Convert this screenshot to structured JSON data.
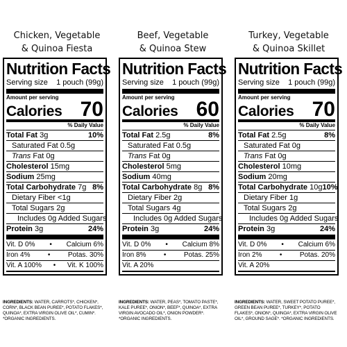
{
  "products": [
    {
      "title_line1": "Chicken, Vegetable",
      "title_line2": "& Quinoa Fiesta",
      "nf_title": "Nutrition Facts",
      "serving_label": "Serving size",
      "serving_value": "1 pouch (99g)",
      "amount_per_serving": "Amount per serving",
      "calories_label": "Calories",
      "calories": "70",
      "dv_header": "% Daily Value",
      "total_fat_label": "Total Fat",
      "total_fat": "3g",
      "total_fat_dv": "10%",
      "sat_fat": "Saturated Fat 0.5g",
      "trans_fat_italic": "Trans",
      "trans_fat": "Fat 0g",
      "chol_label": "Cholesterol",
      "chol": "15mg",
      "sodium_label": "Sodium",
      "sodium": "25mg",
      "carb_label": "Total Carbohydrate",
      "carb": "7g",
      "carb_dv": "8%",
      "fiber": "Dietary Fiber <1g",
      "sugars": "Total Sugars 2g",
      "added_sugars": "Includes 0g Added Sugars",
      "protein_label": "Protein",
      "protein": "3g",
      "protein_dv": "24%",
      "vit1_left": "Vit. D 0%",
      "vit1_right": "Calcium 6%",
      "vit2_left": "Iron 4%",
      "vit2_right": "Potas. 30%",
      "vit3_left": "Vit. A 100%",
      "vit3_right": "Vit. K 100%",
      "ingredients_label": "Ingredients:",
      "ingredients": "Water, Carrots*, Chicken*, Corn*, Black Bean Puree*, Potato Flakes*, Quinoa*, Extra Virgin Olive Oil*, Cumin*.",
      "organic_note": "*Organic Ingredients."
    },
    {
      "title_line1": "Beef, Vegetable",
      "title_line2": "& Quinoa Stew",
      "nf_title": "Nutrition Facts",
      "serving_label": "Serving size",
      "serving_value": "1 pouch (99g)",
      "amount_per_serving": "Amount per serving",
      "calories_label": "Calories",
      "calories": "60",
      "dv_header": "% Daily Value",
      "total_fat_label": "Total Fat",
      "total_fat": "2.5g",
      "total_fat_dv": "8%",
      "sat_fat": "Saturated Fat 0.5g",
      "trans_fat_italic": "Trans",
      "trans_fat": "Fat 0g",
      "chol_label": "Cholesterol",
      "chol": "5mg",
      "sodium_label": "Sodium",
      "sodium": "40mg",
      "carb_label": "Total Carbohydrate",
      "carb": "8g",
      "carb_dv": "8%",
      "fiber": "Dietary Fiber 2g",
      "sugars": "Total Sugars 4g",
      "added_sugars": "Includes 0g Added Sugars",
      "protein_label": "Protein",
      "protein": "3g",
      "protein_dv": "24%",
      "vit1_left": "Vit. D 0%",
      "vit1_right": "Calcium 8%",
      "vit2_left": "Iron 8%",
      "vit2_right": "Potas. 25%",
      "vit3_left": "Vit. A 20%",
      "vit3_right": "",
      "ingredients_label": "Ingredients:",
      "ingredients": "Water, Peas*, Tomato Paste*, Kale Puree*, Onion*, Beef*, Quinoa*, Extra Virgin Avocado Oil*, Onion Powder*.",
      "organic_note": "*Organic Ingredients."
    },
    {
      "title_line1": "Turkey, Vegetable",
      "title_line2": "& Quinoa Skillet",
      "nf_title": "Nutrition Facts",
      "serving_label": "Serving size",
      "serving_value": "1 pouch (99g)",
      "amount_per_serving": "Amount per serving",
      "calories_label": "Calories",
      "calories": "70",
      "dv_header": "% Daily Value",
      "total_fat_label": "Total Fat",
      "total_fat": "2.5g",
      "total_fat_dv": "8%",
      "sat_fat": "Saturated Fat 0g",
      "trans_fat_italic": "Trans",
      "trans_fat": "Fat 0g",
      "chol_label": "Cholesterol",
      "chol": "10mg",
      "sodium_label": "Sodium",
      "sodium": "20mg",
      "carb_label": "Total Carbohydrate",
      "carb": "10g",
      "carb_dv": "10%",
      "fiber": "Dietary Fiber 1g",
      "sugars": "Total Sugars 2g",
      "added_sugars": "Includes 0g Added Sugars",
      "protein_label": "Protein",
      "protein": "3g",
      "protein_dv": "24%",
      "vit1_left": "Vit. D 0%",
      "vit1_right": "Calcium 6%",
      "vit2_left": "Iron 2%",
      "vit2_right": "Potas. 20%",
      "vit3_left": "Vit. A 20%",
      "vit3_right": "",
      "ingredients_label": "Ingredients:",
      "ingredients": "Water, Sweet Potato Puree*, Green Bean Puree*, Turkey*, Potato Flakes*, Onion*, Quinoa*, Extra Virgin Olive Oil*, Ground Sage*.",
      "organic_note": "*Organic Ingredients."
    }
  ]
}
